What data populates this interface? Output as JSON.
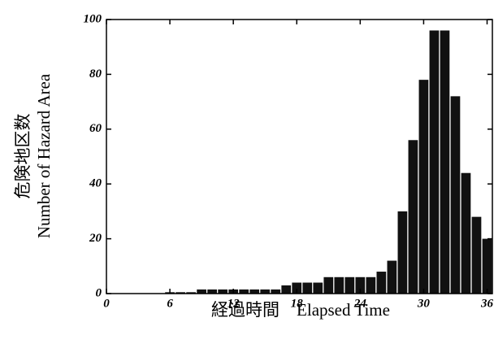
{
  "chart_data": {
    "type": "bar",
    "x": [
      6,
      7,
      8,
      9,
      10,
      11,
      12,
      13,
      14,
      15,
      16,
      17,
      18,
      19,
      20,
      21,
      22,
      23,
      24,
      25,
      26,
      27,
      28,
      29,
      30,
      31,
      32,
      33,
      34,
      35,
      36
    ],
    "values": [
      0.5,
      0.5,
      0.5,
      1.5,
      1.5,
      1.5,
      1.5,
      1.5,
      1.5,
      1.5,
      1.5,
      3,
      4,
      4,
      4,
      6,
      6,
      6,
      6,
      6,
      8,
      12,
      30,
      56,
      78,
      96,
      96,
      72,
      44,
      28,
      20
    ],
    "color": "#111111",
    "xlim": [
      0,
      36.5
    ],
    "xticks": [
      0,
      6,
      12,
      18,
      24,
      30,
      36
    ],
    "ylim": [
      0,
      100
    ],
    "yticks": [
      0,
      20,
      40,
      60,
      80,
      100
    ],
    "xlabel": "経過時間　Elapsed Time",
    "ylabel": [
      "危険地区数",
      "Number of Hazard Area"
    ]
  }
}
